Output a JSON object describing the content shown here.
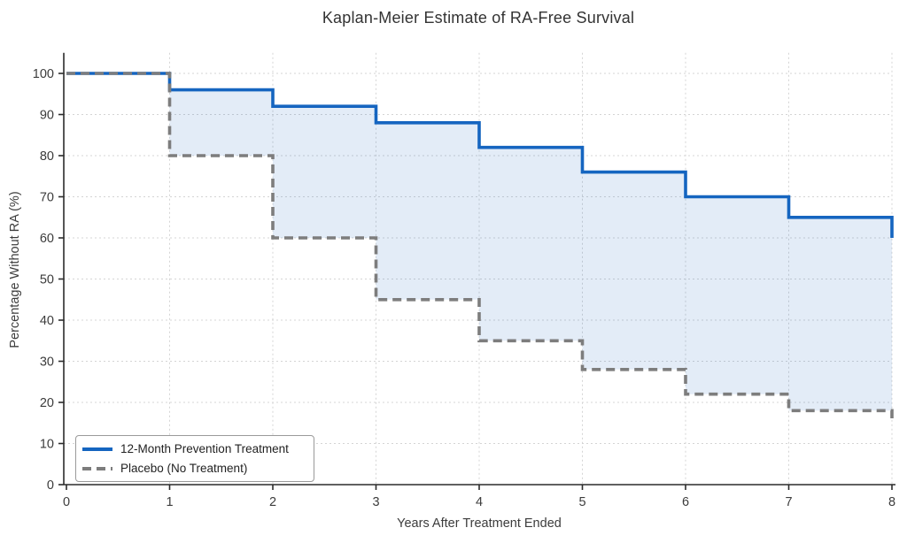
{
  "title": "Kaplan-Meier Estimate of RA-Free Survival",
  "chart_data": {
    "type": "line",
    "subtype": "kaplan-meier-step",
    "title": "Kaplan-Meier Estimate of RA-Free Survival",
    "xlabel": "Years After Treatment Ended",
    "ylabel": "Percentage Without RA (%)",
    "xlim": [
      0,
      8
    ],
    "ylim": [
      0,
      105
    ],
    "xticks": [
      0,
      1,
      2,
      3,
      4,
      5,
      6,
      7,
      8
    ],
    "yticks": [
      0,
      10,
      20,
      30,
      40,
      50,
      60,
      70,
      80,
      90,
      100
    ],
    "grid": true,
    "grid_style": "dashed-light",
    "legend_position": "lower-left",
    "x": [
      0,
      1,
      2,
      3,
      4,
      5,
      6,
      7,
      8
    ],
    "series": [
      {
        "name": "12-Month Prevention Treatment",
        "line_style": "solid",
        "color": "#1565c0",
        "values": [
          100,
          96,
          92,
          88,
          82,
          76,
          70,
          65,
          60
        ]
      },
      {
        "name": "Placebo (No Treatment)",
        "line_style": "dashed",
        "color": "#7d7d7d",
        "values": [
          100,
          80,
          60,
          45,
          35,
          28,
          22,
          18,
          15
        ]
      }
    ],
    "fill_between": {
      "between": [
        "12-Month Prevention Treatment",
        "Placebo (No Treatment)"
      ],
      "color": "#1565c0",
      "opacity": 0.12
    }
  },
  "colors": {
    "treatment_line": "#1565c0",
    "placebo_line": "#7d7d7d",
    "band_fill": "#1565c0",
    "gridline": "#d4d4d4",
    "spine": "#2b2b2b",
    "tick_text": "#3c3c3c"
  }
}
